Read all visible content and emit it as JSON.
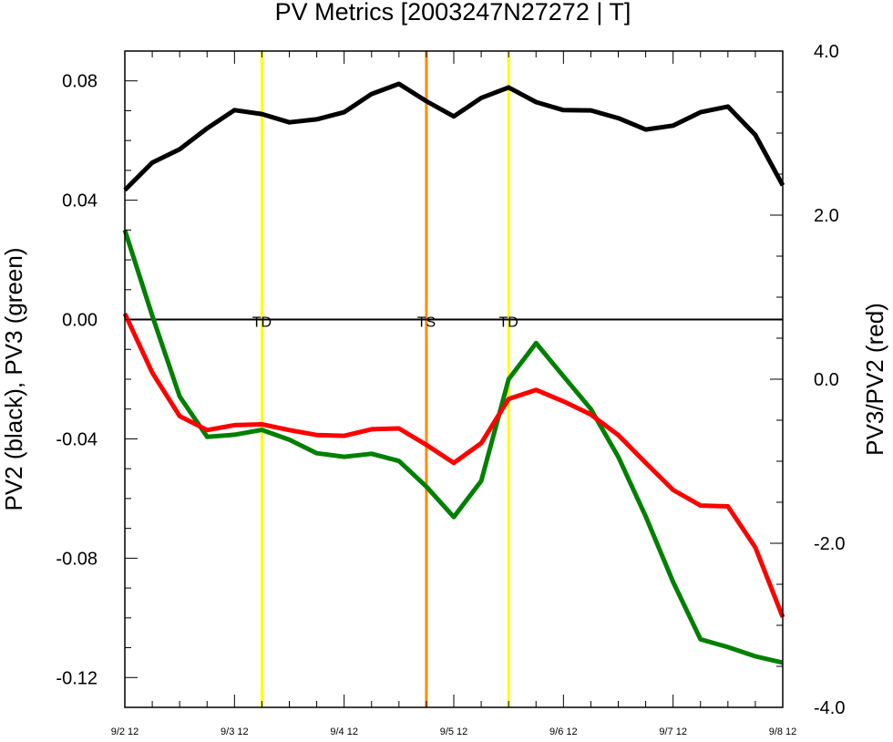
{
  "chart_data": {
    "type": "line",
    "title": "PV Metrics [2003247N27272 | T]",
    "ylabel_left": "PV2 (black), PV3 (green)",
    "ylabel_right": "PV3/PV2 (red)",
    "x": [
      0,
      1,
      2,
      3,
      4,
      5,
      6,
      7,
      8,
      9,
      10,
      11,
      12,
      13,
      14,
      15,
      16,
      17,
      18,
      19,
      20,
      21,
      22,
      23,
      24
    ],
    "xlim": [
      0,
      24
    ],
    "xticks": [
      {
        "x": 0,
        "label": "9/2 12"
      },
      {
        "x": 4,
        "label": "9/3 12"
      },
      {
        "x": 8,
        "label": "9/4 12"
      },
      {
        "x": 12,
        "label": "9/5 12"
      },
      {
        "x": 16,
        "label": "9/6 12"
      },
      {
        "x": 20,
        "label": "9/7 12"
      },
      {
        "x": 24,
        "label": "9/8 12"
      }
    ],
    "ylim_left": [
      -0.13,
      0.09
    ],
    "yticks_left": [
      {
        "v": 0.08,
        "label": "0.08"
      },
      {
        "v": 0.04,
        "label": "0.04"
      },
      {
        "v": 0.0,
        "label": "0.00"
      },
      {
        "v": -0.04,
        "label": "-0.04"
      },
      {
        "v": -0.08,
        "label": "-0.08"
      },
      {
        "v": -0.12,
        "label": "-0.12"
      }
    ],
    "ylim_right": [
      -4.0,
      4.0
    ],
    "yticks_right": [
      {
        "v": 4.0,
        "label": "4.0"
      },
      {
        "v": 2.0,
        "label": "2.0"
      },
      {
        "v": 0.0,
        "label": "0.0"
      },
      {
        "v": -2.0,
        "label": "-2.0"
      },
      {
        "v": -4.0,
        "label": "-4.0"
      }
    ],
    "zero_line": 0.0,
    "series": [
      {
        "axis": "left",
        "color": "#000000",
        "values": [
          0.0434,
          0.0526,
          0.0571,
          0.0641,
          0.0702,
          0.0689,
          0.0661,
          0.0671,
          0.0695,
          0.0756,
          0.079,
          0.0732,
          0.0681,
          0.0743,
          0.0778,
          0.0729,
          0.0702,
          0.0701,
          0.0675,
          0.0637,
          0.065,
          0.0695,
          0.0714,
          0.0619,
          0.045
        ]
      },
      {
        "axis": "left",
        "color": "#008000",
        "values": [
          0.03,
          0.0013,
          -0.0258,
          -0.0393,
          -0.0386,
          -0.037,
          -0.0403,
          -0.0448,
          -0.046,
          -0.045,
          -0.0474,
          -0.056,
          -0.0662,
          -0.0541,
          -0.02,
          -0.0079,
          -0.019,
          -0.03,
          -0.046,
          -0.066,
          -0.088,
          -0.1072,
          -0.1098,
          -0.1129,
          -0.115
        ]
      },
      {
        "axis": "right",
        "color": "#ff0000",
        "values": [
          0.8,
          0.08,
          -0.45,
          -0.62,
          -0.56,
          -0.55,
          -0.62,
          -0.68,
          -0.69,
          -0.61,
          -0.6,
          -0.8,
          -1.02,
          -0.78,
          -0.24,
          -0.13,
          -0.27,
          -0.43,
          -0.68,
          -1.02,
          -1.35,
          -1.54,
          -1.55,
          -2.05,
          -2.9
        ]
      }
    ],
    "markers": [
      {
        "x": 5.0,
        "label": "TD",
        "color": "#ffff00"
      },
      {
        "x": 11.0,
        "label": "TS",
        "color": "#ff8c00"
      },
      {
        "x": 14.0,
        "label": "TD",
        "color": "#ffff00"
      }
    ]
  }
}
